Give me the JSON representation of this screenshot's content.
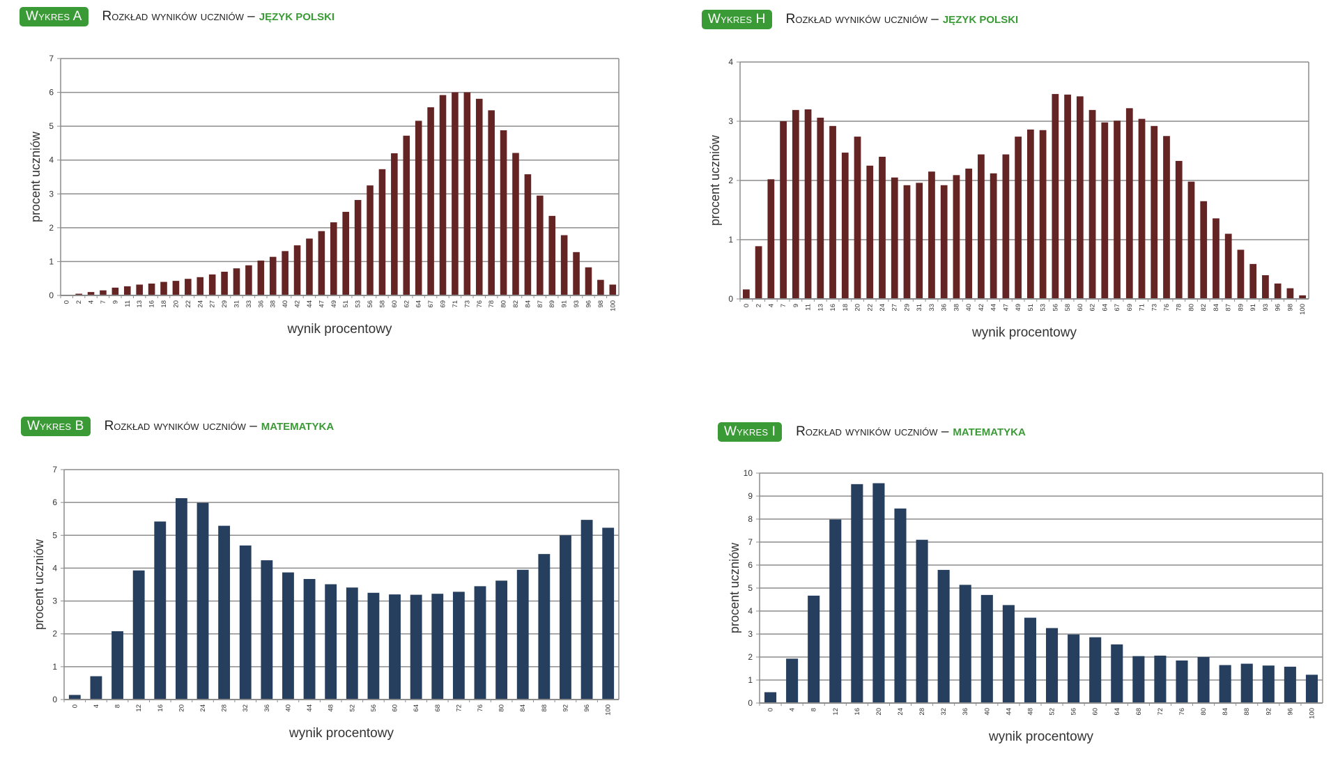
{
  "colors": {
    "badge": "#3a9a35",
    "subject": "#3a9a35",
    "polish_bar": "#642424",
    "math_bar": "#263f5e",
    "grid": "#8c8c8c"
  },
  "chart_data": [
    {
      "id": "A",
      "type": "bar",
      "badge": "Wykres A",
      "title": "Rozkład wyników uczniów –",
      "subject": "JĘZYK POLSKI",
      "xlabel": "wynik procentowy",
      "ylabel": "procent uczniów",
      "ylim": [
        0,
        7
      ],
      "yticks": [
        0,
        1,
        2,
        3,
        4,
        5,
        6,
        7
      ],
      "grid": true,
      "categories": [
        "0",
        "2",
        "4",
        "7",
        "9",
        "11",
        "13",
        "16",
        "18",
        "20",
        "22",
        "24",
        "27",
        "29",
        "31",
        "33",
        "36",
        "38",
        "40",
        "42",
        "44",
        "47",
        "49",
        "51",
        "53",
        "56",
        "58",
        "60",
        "62",
        "64",
        "67",
        "69",
        "71",
        "73",
        "76",
        "78",
        "80",
        "82",
        "84",
        "87",
        "89",
        "91",
        "93",
        "96",
        "98",
        "100"
      ],
      "values": [
        0.02,
        0.05,
        0.1,
        0.15,
        0.23,
        0.27,
        0.32,
        0.35,
        0.4,
        0.43,
        0.49,
        0.54,
        0.62,
        0.7,
        0.8,
        0.89,
        1.03,
        1.14,
        1.31,
        1.48,
        1.68,
        1.9,
        2.16,
        2.47,
        2.82,
        3.25,
        3.73,
        4.2,
        4.72,
        5.16,
        5.56,
        5.92,
        6.0,
        6.0,
        5.81,
        5.47,
        4.88,
        4.21,
        3.58,
        2.95,
        2.35,
        1.78,
        1.28,
        0.83,
        0.46,
        0.32
      ]
    },
    {
      "id": "H",
      "type": "bar",
      "badge": "Wykres H",
      "title": "Rozkład wyników uczniów –",
      "subject": "JĘZYK POLSKI",
      "xlabel": "wynik procentowy",
      "ylabel": "procent uczniów",
      "ylim": [
        0,
        4
      ],
      "yticks": [
        0,
        1,
        2,
        3,
        4
      ],
      "grid": true,
      "categories": [
        "0",
        "2",
        "4",
        "7",
        "9",
        "11",
        "13",
        "16",
        "18",
        "20",
        "22",
        "24",
        "27",
        "29",
        "31",
        "33",
        "36",
        "38",
        "40",
        "42",
        "44",
        "47",
        "49",
        "51",
        "53",
        "56",
        "58",
        "60",
        "62",
        "64",
        "67",
        "69",
        "71",
        "73",
        "76",
        "78",
        "80",
        "82",
        "84",
        "87",
        "89",
        "91",
        "93",
        "96",
        "98",
        "100"
      ],
      "values": [
        0.16,
        0.89,
        2.02,
        3.0,
        3.19,
        3.2,
        3.06,
        2.92,
        2.47,
        2.74,
        2.25,
        2.4,
        2.05,
        1.92,
        1.96,
        2.15,
        1.92,
        2.09,
        2.2,
        2.44,
        2.12,
        2.44,
        2.74,
        2.86,
        2.85,
        3.46,
        3.45,
        3.42,
        3.19,
        2.98,
        3.01,
        3.22,
        3.04,
        2.92,
        2.75,
        2.33,
        1.98,
        1.65,
        1.36,
        1.1,
        0.83,
        0.59,
        0.4,
        0.26,
        0.18,
        0.06
      ]
    },
    {
      "id": "B",
      "type": "bar",
      "badge": "Wykres B",
      "title": "Rozkład wyników uczniów –",
      "subject": "MATEMATYKA",
      "xlabel": "wynik procentowy",
      "ylabel": "procent uczniów",
      "ylim": [
        0,
        7
      ],
      "yticks": [
        0,
        1,
        2,
        3,
        4,
        5,
        6,
        7
      ],
      "grid": true,
      "categories": [
        "0",
        "4",
        "8",
        "12",
        "16",
        "20",
        "24",
        "28",
        "32",
        "36",
        "40",
        "44",
        "48",
        "52",
        "56",
        "60",
        "64",
        "68",
        "72",
        "76",
        "80",
        "84",
        "88",
        "92",
        "96",
        "100"
      ],
      "values": [
        0.14,
        0.71,
        2.08,
        3.93,
        5.42,
        6.13,
        5.99,
        5.29,
        4.69,
        4.24,
        3.87,
        3.67,
        3.51,
        3.41,
        3.25,
        3.2,
        3.19,
        3.22,
        3.28,
        3.45,
        3.62,
        3.95,
        4.43,
        5.0,
        5.47,
        5.23
      ]
    },
    {
      "id": "I",
      "type": "bar",
      "badge": "Wykres I",
      "title": "Rozkład wyników uczniów –",
      "subject": "MATEMATYKA",
      "xlabel": "wynik procentowy",
      "ylabel": "procent uczniów",
      "ylim": [
        0,
        10
      ],
      "yticks": [
        0,
        1,
        2,
        3,
        4,
        5,
        6,
        7,
        8,
        9,
        10
      ],
      "grid": true,
      "categories": [
        "0",
        "4",
        "8",
        "12",
        "16",
        "20",
        "24",
        "28",
        "32",
        "36",
        "40",
        "44",
        "48",
        "52",
        "56",
        "60",
        "64",
        "68",
        "72",
        "76",
        "80",
        "84",
        "88",
        "92",
        "96",
        "100"
      ],
      "values": [
        0.47,
        1.93,
        4.67,
        7.98,
        9.52,
        9.56,
        8.46,
        7.1,
        5.79,
        5.14,
        4.7,
        4.26,
        3.71,
        3.26,
        2.98,
        2.86,
        2.55,
        2.04,
        2.06,
        1.85,
        2.0,
        1.65,
        1.71,
        1.63,
        1.58,
        1.23
      ]
    }
  ]
}
